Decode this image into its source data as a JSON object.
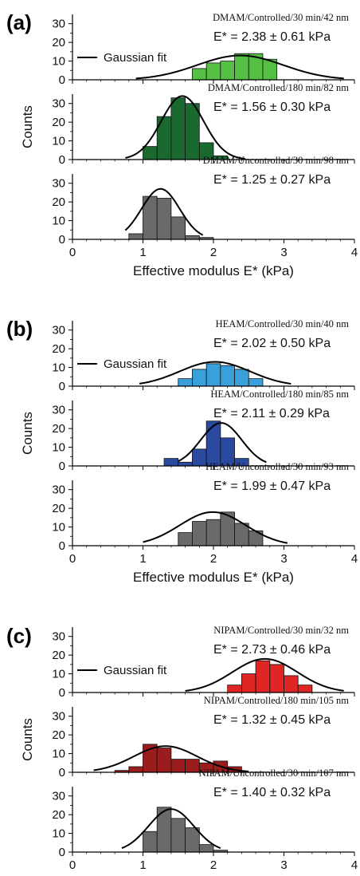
{
  "legend_label": "Gaussian fit",
  "chart_data": [
    {
      "panel": "(a)",
      "type": "bar",
      "bin_width": 0.2,
      "xlim": [
        0,
        4
      ],
      "ylim": [
        0,
        35
      ],
      "x_ticks": [
        "0",
        "1",
        "2",
        "3",
        "4"
      ],
      "y_ticks": [
        "0",
        "10",
        "20",
        "30"
      ],
      "xlabel": "Effective modulus E* (kPa)",
      "ylabel": "Counts",
      "subplots": [
        {
          "label": "DMAM/Controlled/30 min/42 nm",
          "modulus": "E* = 2.38 ± 0.61 kPa",
          "color": "#55c044",
          "bins_start": [
            1.7,
            1.9,
            2.1,
            2.3,
            2.5,
            2.7
          ],
          "values": [
            6,
            9,
            10,
            14,
            14,
            11
          ],
          "fit": {
            "mean": 2.38,
            "sd": 0.61,
            "amp": 13,
            "range": [
              0.9,
              3.85
            ]
          }
        },
        {
          "label": "DMAM/Controlled/180 min/82 nm",
          "modulus": "E* = 1.56 ± 0.30 kPa",
          "color": "#1a6a30",
          "bins_start": [
            1.0,
            1.2,
            1.4,
            1.6,
            1.8,
            2.0
          ],
          "values": [
            7,
            23,
            33,
            30,
            9,
            2
          ],
          "fit": {
            "mean": 1.56,
            "sd": 0.3,
            "amp": 34,
            "range": [
              0.75,
              2.45
            ]
          }
        },
        {
          "label": "DMAM/Uncontrolled/30 min/98 nm",
          "modulus": "E* = 1.25 ± 0.27 kPa",
          "color": "#6a6a6a",
          "bins_start": [
            0.8,
            1.0,
            1.2,
            1.4,
            1.6,
            1.8
          ],
          "values": [
            3,
            23,
            22,
            12,
            2,
            1
          ],
          "fit": {
            "mean": 1.25,
            "sd": 0.27,
            "amp": 27,
            "range": [
              0.75,
              1.85
            ]
          }
        }
      ]
    },
    {
      "panel": "(b)",
      "type": "bar",
      "bin_width": 0.2,
      "xlim": [
        0,
        4
      ],
      "ylim": [
        0,
        35
      ],
      "x_ticks": [
        "0",
        "1",
        "2",
        "3",
        "4"
      ],
      "y_ticks": [
        "0",
        "10",
        "20",
        "30"
      ],
      "xlabel": "Effective modulus E* (kPa)",
      "ylabel": "Counts",
      "subplots": [
        {
          "label": "HEAM/Controlled/30 min/40 nm",
          "modulus": "E* = 2.02 ± 0.50 kPa",
          "color": "#3aa0dc",
          "bins_start": [
            1.5,
            1.7,
            1.9,
            2.1,
            2.3,
            2.5
          ],
          "values": [
            4,
            9,
            12,
            11,
            9,
            4
          ],
          "fit": {
            "mean": 2.02,
            "sd": 0.5,
            "amp": 13,
            "range": [
              0.95,
              3.1
            ]
          }
        },
        {
          "label": "HEAM/Controlled/180 min/85 nm",
          "modulus": "E* = 2.11 ± 0.29 kPa",
          "color": "#2a4aa0",
          "bins_start": [
            1.3,
            1.5,
            1.7,
            1.9,
            2.1,
            2.3
          ],
          "values": [
            4,
            2,
            9,
            24,
            15,
            4
          ],
          "fit": {
            "mean": 2.11,
            "sd": 0.29,
            "amp": 23,
            "range": [
              1.5,
              2.75
            ]
          }
        },
        {
          "label": "HEAM/Uncontrolled/30 min/93 nm",
          "modulus": "E* = 1.99 ± 0.47 kPa",
          "color": "#6a6a6a",
          "bins_start": [
            1.5,
            1.7,
            1.9,
            2.1,
            2.3,
            2.5
          ],
          "values": [
            7,
            13,
            14,
            18,
            12,
            8
          ],
          "fit": {
            "mean": 1.99,
            "sd": 0.47,
            "amp": 18,
            "range": [
              1.0,
              3.05
            ]
          }
        }
      ]
    },
    {
      "panel": "(c)",
      "type": "bar",
      "bin_width": 0.2,
      "xlim": [
        0,
        4
      ],
      "ylim": [
        0,
        35
      ],
      "x_ticks": [
        "0",
        "1",
        "2",
        "3",
        "4"
      ],
      "y_ticks": [
        "0",
        "10",
        "20",
        "30"
      ],
      "xlabel": "Effective modulus E* (kPa)",
      "ylabel": "Counts",
      "subplots": [
        {
          "label": "NIPAM/Controlled/30 min/32 nm",
          "modulus": "E* = 2.73 ± 0.46 kPa",
          "color": "#e02525",
          "bins_start": [
            2.2,
            2.4,
            2.6,
            2.8,
            3.0,
            3.2
          ],
          "values": [
            4,
            10,
            17,
            15,
            9,
            4
          ],
          "fit": {
            "mean": 2.73,
            "sd": 0.46,
            "amp": 18,
            "range": [
              1.6,
              3.85
            ]
          }
        },
        {
          "label": "NIPAM/Controlled/180 min/105 nm",
          "modulus": "E* = 1.32 ± 0.45 kPa",
          "color": "#9a1c1c",
          "bins_start": [
            0.6,
            0.8,
            1.0,
            1.2,
            1.4,
            1.6,
            1.8,
            2.0,
            2.2
          ],
          "values": [
            1,
            3,
            15,
            13,
            7,
            7,
            5,
            6,
            3
          ],
          "fit": {
            "mean": 1.32,
            "sd": 0.45,
            "amp": 14,
            "range": [
              0.3,
              2.5
            ]
          }
        },
        {
          "label": "NIPAM/Uncontrolled/30 min/107 nm",
          "modulus": "E* = 1.40 ± 0.32 kPa",
          "color": "#6a6a6a",
          "bins_start": [
            1.0,
            1.2,
            1.4,
            1.6,
            1.8,
            2.0
          ],
          "values": [
            11,
            24,
            18,
            13,
            4,
            1
          ],
          "fit": {
            "mean": 1.4,
            "sd": 0.32,
            "amp": 23,
            "range": [
              0.7,
              2.1
            ]
          }
        }
      ]
    }
  ]
}
